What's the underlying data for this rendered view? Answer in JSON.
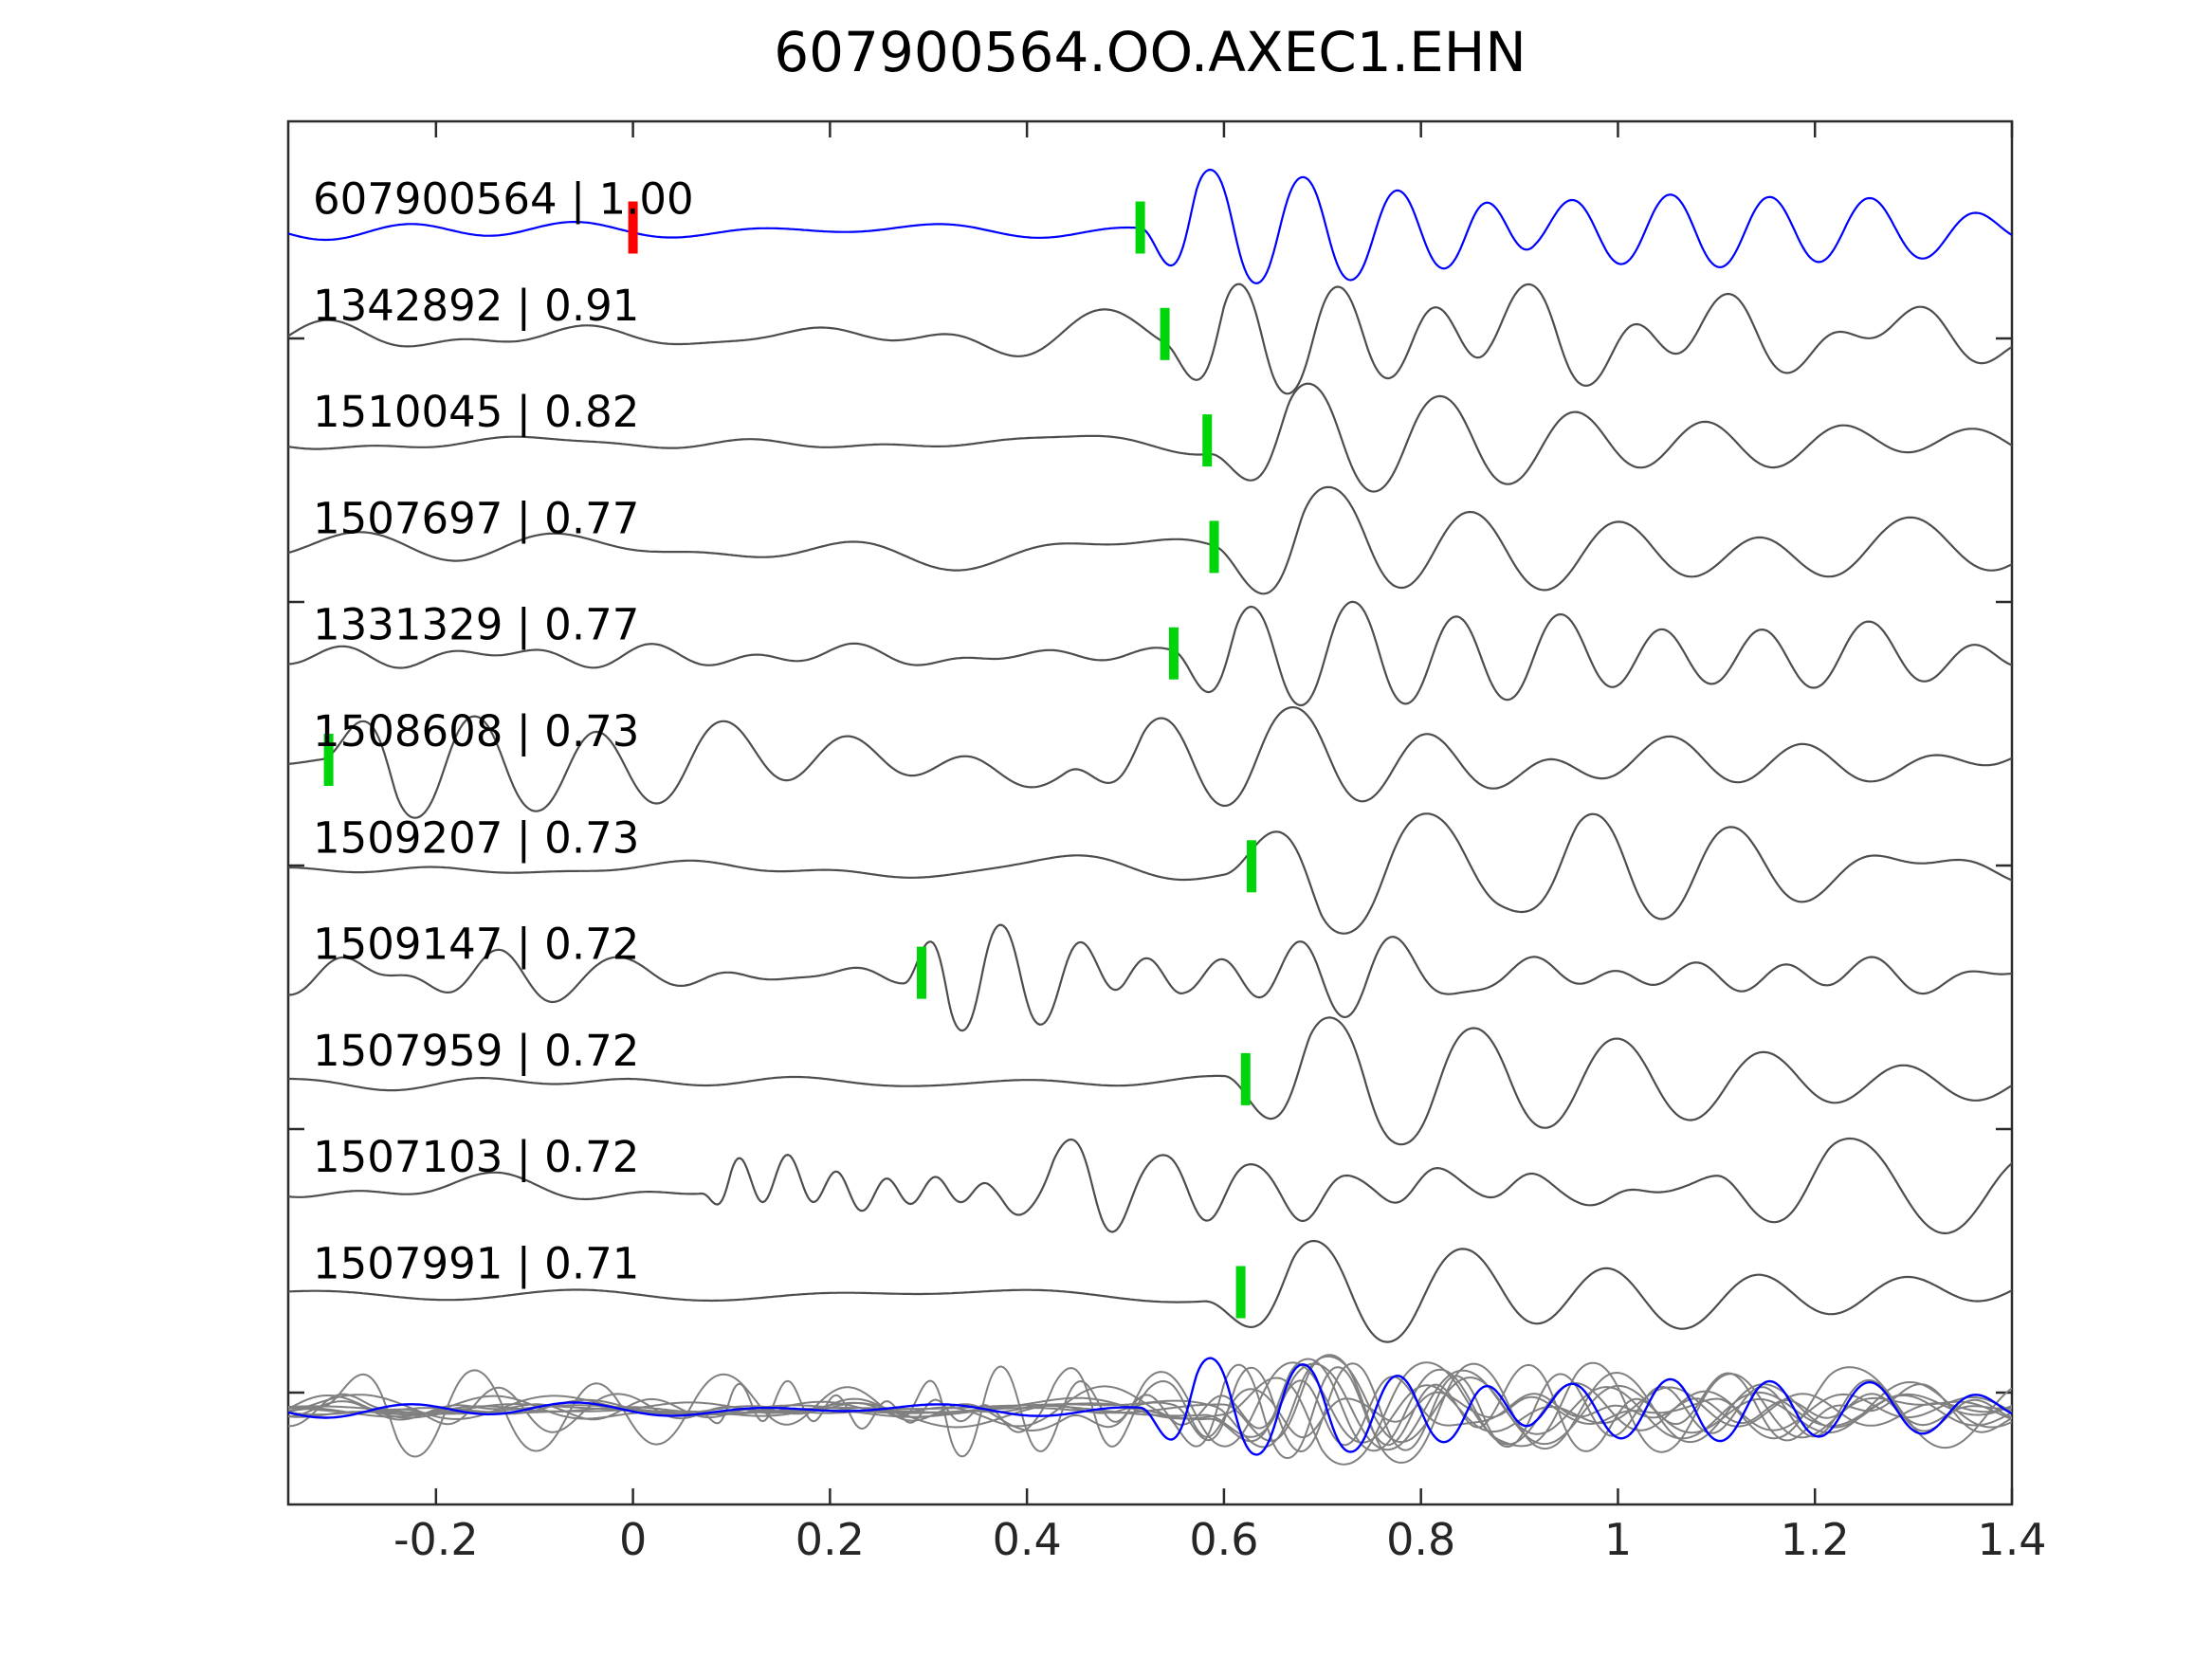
{
  "title": "607900564.OO.AXEC1.EHN",
  "colors": {
    "background": "#ffffff",
    "axis": "#2b2b2b",
    "label_text": "#000000",
    "tick_text": "#262626",
    "template_trace": "#0000ff",
    "detection_trace": "#4d4d4d",
    "overlay_trace": "#808080",
    "pick_green": "#00d40a",
    "pick_red": "#ff0000"
  },
  "axes": {
    "xtick_labels": [
      "-0.2",
      "0",
      "0.2",
      "0.4",
      "0.6",
      "0.8",
      "1",
      "1.2",
      "1.4"
    ],
    "xticks": [
      -0.2,
      0,
      0.2,
      0.4,
      0.6,
      0.8,
      1.0,
      1.2,
      1.4
    ],
    "ticks_direction": "in",
    "ticks_on_sides": [
      "top",
      "bottom",
      "left",
      "right"
    ],
    "ylabel": "",
    "xlabel": ""
  },
  "chart_data": {
    "type": "line",
    "title": "607900564.OO.AXEC1.EHN",
    "xlabel": "",
    "ylabel": "",
    "xlim": [
      -0.35,
      1.4
    ],
    "grid": false,
    "legend": "none",
    "description": "Template 607900564 (blue, top) compared with 10 detected events (dark gray), each labeled 'event_id | cross-correlation'. Vertical green bars mark pick times, red bar marks template zero time. Bottom row overlays all traces (gray) with the blue template.",
    "rows": [
      {
        "label": "607900564 | 1.00",
        "event_id": "607900564",
        "correlation": "1.00",
        "is_template": true,
        "picks": [
          {
            "time": 0.0,
            "color": "#ff0000",
            "type": "template-origin"
          },
          {
            "time": 0.515,
            "color": "#00d40a",
            "type": "pick"
          }
        ],
        "synthesis": {
          "seed": 11,
          "noise_amp": 7,
          "noise_freq": [
            2.0,
            10.0
          ],
          "bursts": [
            {
              "t": 0.515,
              "amp": 80,
              "period": 0.095,
              "decay": 0.4,
              "polarity": -1
            },
            {
              "t": 0.85,
              "amp": 28,
              "period": 0.11,
              "decay": 0.9,
              "polarity": -1
            }
          ]
        }
      },
      {
        "label": "1342892 | 0.91",
        "event_id": "1342892",
        "correlation": "0.91",
        "is_template": false,
        "picks": [
          {
            "time": 0.54,
            "color": "#00d40a",
            "type": "pick"
          }
        ],
        "synthesis": {
          "seed": 22,
          "noise_amp": 15,
          "noise_freq": [
            2.5,
            9.0
          ],
          "bursts": [
            {
              "t": 0.54,
              "amp": 72,
              "period": 0.1,
              "decay": 0.5,
              "polarity": -1
            },
            {
              "t": 0.75,
              "amp": 45,
              "period": 0.2,
              "decay": 0.6,
              "polarity": -1
            }
          ]
        }
      },
      {
        "label": "1510045 | 0.82",
        "event_id": "1510045",
        "correlation": "0.82",
        "is_template": false,
        "picks": [
          {
            "time": 0.583,
            "color": "#00d40a",
            "type": "pick"
          }
        ],
        "synthesis": {
          "seed": 33,
          "noise_amp": 6,
          "noise_freq": [
            2.0,
            8.0
          ],
          "bursts": [
            {
              "t": 0.585,
              "amp": 78,
              "period": 0.135,
              "decay": 0.4,
              "polarity": -1
            }
          ]
        }
      },
      {
        "label": "1507697 | 0.77",
        "event_id": "1507697",
        "correlation": "0.77",
        "is_template": false,
        "picks": [
          {
            "time": 0.59,
            "color": "#00d40a",
            "type": "pick"
          }
        ],
        "synthesis": {
          "seed": 44,
          "noise_amp": 17,
          "noise_freq": [
            1.2,
            6.0
          ],
          "bursts": [
            {
              "t": 0.59,
              "amp": 78,
              "period": 0.15,
              "decay": 0.45,
              "polarity": -1
            }
          ]
        }
      },
      {
        "label": "1331329 | 0.77",
        "event_id": "1331329",
        "correlation": "0.77",
        "is_template": false,
        "picks": [
          {
            "time": 0.549,
            "color": "#00d40a",
            "type": "pick"
          }
        ],
        "synthesis": {
          "seed": 55,
          "noise_amp": 13,
          "noise_freq": [
            3.0,
            11.0
          ],
          "bursts": [
            {
              "t": 0.549,
              "amp": 68,
              "period": 0.105,
              "decay": 0.55,
              "polarity": -1
            }
          ]
        }
      },
      {
        "label": "1508608 | 0.73",
        "event_id": "1508608",
        "correlation": "0.73",
        "is_template": false,
        "picks": [
          {
            "time": -0.309,
            "color": "#00d40a",
            "type": "pick"
          }
        ],
        "synthesis": {
          "seed": 66,
          "noise_amp": 17,
          "noise_freq": [
            1.5,
            7.0
          ],
          "bursts": [
            {
              "t": -0.315,
              "amp": 78,
              "period": 0.125,
              "decay": 0.35,
              "polarity": 1
            },
            {
              "t": 0.44,
              "amp": 58,
              "period": 0.13,
              "decay": 0.55,
              "polarity": -1
            }
          ]
        }
      },
      {
        "label": "1509207 | 0.73",
        "event_id": "1509207",
        "correlation": "0.73",
        "is_template": false,
        "picks": [
          {
            "time": 0.628,
            "color": "#00d40a",
            "type": "pick"
          }
        ],
        "synthesis": {
          "seed": 77,
          "noise_amp": 15,
          "noise_freq": [
            2.0,
            8.0
          ],
          "bursts": [
            {
              "t": 0.6,
              "amp": 88,
              "period": 0.165,
              "decay": 0.35,
              "polarity": 1
            },
            {
              "t": 0.88,
              "amp": 40,
              "period": 0.13,
              "decay": 0.5,
              "polarity": -1
            }
          ]
        }
      },
      {
        "label": "1509147 | 0.72",
        "event_id": "1509147",
        "correlation": "0.72",
        "is_template": false,
        "picks": [
          {
            "time": 0.293,
            "color": "#00d40a",
            "type": "pick"
          }
        ],
        "synthesis": {
          "seed": 88,
          "noise_amp": 19,
          "noise_freq": [
            4.0,
            13.0
          ],
          "bursts": [
            {
              "t": 0.275,
              "amp": 72,
              "period": 0.078,
              "decay": 0.3,
              "polarity": 1
            },
            {
              "t": 0.5,
              "amp": 30,
              "period": 0.1,
              "decay": 0.6,
              "polarity": -1
            }
          ]
        }
      },
      {
        "label": "1507959 | 0.72",
        "event_id": "1507959",
        "correlation": "0.72",
        "is_template": false,
        "picks": [
          {
            "time": 0.622,
            "color": "#00d40a",
            "type": "pick"
          }
        ],
        "synthesis": {
          "seed": 99,
          "noise_amp": 8,
          "noise_freq": [
            2.0,
            8.0
          ],
          "bursts": [
            {
              "t": 0.6,
              "amp": 90,
              "period": 0.145,
              "decay": 0.45,
              "polarity": -1
            }
          ]
        }
      },
      {
        "label": "1507103 | 0.72",
        "event_id": "1507103",
        "correlation": "0.72",
        "is_template": false,
        "picks": [],
        "synthesis": {
          "seed": 110,
          "noise_amp": 13,
          "noise_freq": [
            2.0,
            9.0
          ],
          "bursts": [
            {
              "t": 0.07,
              "amp": 30,
              "period": 0.05,
              "decay": 0.25,
              "polarity": -1
            },
            {
              "t": 0.37,
              "amp": 58,
              "period": 0.095,
              "decay": 0.3,
              "polarity": -1
            },
            {
              "t": 1.1,
              "amp": 65,
              "period": 0.19,
              "decay": 0.7,
              "polarity": -1
            }
          ]
        }
      },
      {
        "label": "1507991 | 0.71",
        "event_id": "1507991",
        "correlation": "0.71",
        "is_template": false,
        "picks": [
          {
            "time": 0.617,
            "color": "#00d40a",
            "type": "pick"
          }
        ],
        "synthesis": {
          "seed": 121,
          "noise_amp": 8,
          "noise_freq": [
            1.5,
            7.0
          ],
          "bursts": [
            {
              "t": 0.58,
              "amp": 68,
              "period": 0.15,
              "decay": 0.45,
              "polarity": -1
            }
          ]
        }
      }
    ],
    "overlay": {
      "description": "All 11 traces superimposed at the bottom row; detections in gray, template in blue on top",
      "trace_color": "#808080",
      "template_color": "#0000ff",
      "amplitude_scale": 0.85
    }
  }
}
